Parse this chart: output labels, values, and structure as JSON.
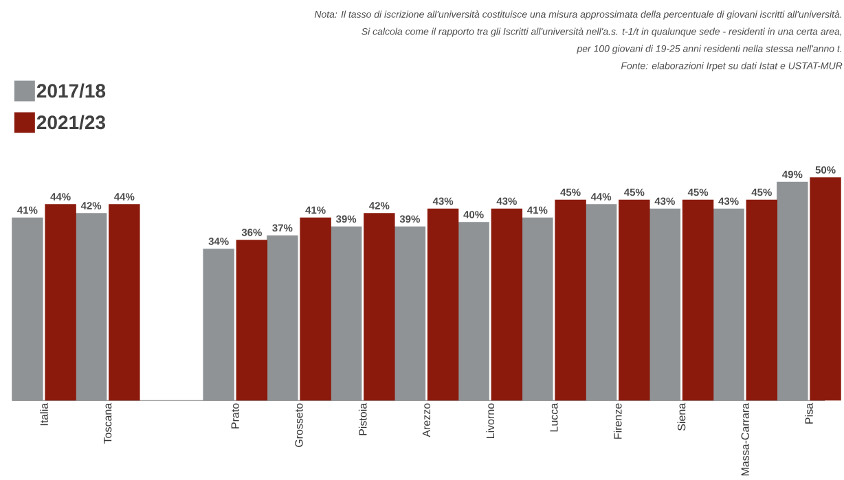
{
  "chart_data": {
    "type": "bar",
    "categories": [
      "Italia",
      "Toscana",
      null,
      "Prato",
      "Grosseto",
      "Pistoia",
      "Arezzo",
      "Livorno",
      "Lucca",
      "Firenze",
      "Siena",
      "Massa-Carrara",
      "Pisa"
    ],
    "series": [
      {
        "name": "2017/18",
        "color": "#8f9396",
        "values": [
          41,
          42,
          null,
          34,
          37,
          39,
          39,
          40,
          41,
          44,
          43,
          43,
          49
        ],
        "value_labels": [
          "41%",
          "42%",
          null,
          "34%",
          "37%",
          "39%",
          "39%",
          "40%",
          "41%",
          "44%",
          "43%",
          "43%",
          "49%"
        ]
      },
      {
        "name": "2021/23",
        "color": "#8b1a0c",
        "values": [
          44,
          44,
          null,
          36,
          41,
          42,
          43,
          43,
          45,
          45,
          45,
          45,
          50
        ],
        "value_labels": [
          "44%",
          "44%",
          null,
          "36%",
          "41%",
          "42%",
          "43%",
          "43%",
          "45%",
          "45%",
          "45%",
          "45%",
          "50%"
        ]
      }
    ],
    "legend": "top left",
    "annotations": [
      "Nota: Il tasso di iscrizione all'università costituisce una misura approssimata della percentuale di giovani iscritti all'università.",
      "Si calcola come il rapporto tra gli Iscritti all'università nell'a.s. t-1/t in qualunque sede - residenti in una certa area,",
      "per 100 giovani di 19-25 anni residenti nella stessa nell'anno t.",
      "Fonte: elaborazioni Irpet su dati Istat e USTAT-MUR"
    ]
  }
}
